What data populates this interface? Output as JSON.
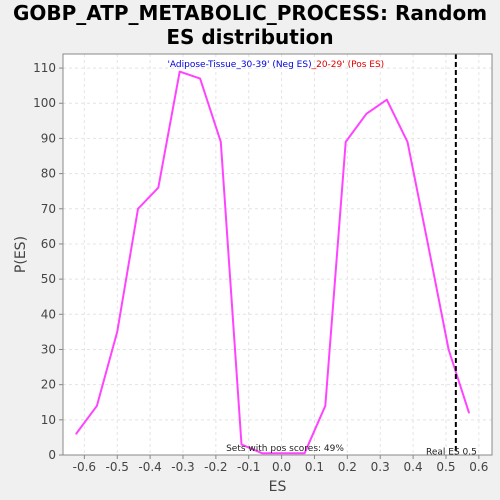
{
  "chart_data": {
    "type": "line",
    "title_line1": "GOBP_ATP_METABOLIC_PROCESS: Random",
    "title_line2": "ES distribution",
    "xlabel": "ES",
    "ylabel": "P(ES)",
    "xlim": [
      -0.665,
      0.64
    ],
    "ylim": [
      0,
      114
    ],
    "xticks": [
      "-0.6",
      "-0.5",
      "-0.4",
      "-0.3",
      "-0.2",
      "-0.1",
      "0.0",
      "0.1",
      "0.2",
      "0.3",
      "0.4",
      "0.5",
      "0.6"
    ],
    "yticks": [
      "0",
      "10",
      "20",
      "30",
      "40",
      "50",
      "60",
      "70",
      "80",
      "90",
      "100",
      "110"
    ],
    "grid": true,
    "series": [
      {
        "color": "#ff44ff",
        "x": [
          -0.625,
          -0.562,
          -0.5,
          -0.437,
          -0.375,
          -0.31,
          -0.248,
          -0.185,
          -0.122,
          -0.06,
          0.0,
          0.07,
          0.133,
          0.195,
          0.258,
          0.32,
          0.383,
          0.445,
          0.508,
          0.57
        ],
        "y": [
          6,
          14,
          35,
          70,
          76,
          109,
          107,
          89,
          3,
          0.5,
          0.5,
          0.5,
          14,
          89,
          97,
          101,
          89,
          60,
          30,
          12
        ]
      }
    ],
    "neg_label": "'Adipose-Tissue_30-39' (Neg ES)",
    "pos_label": "_20-29' (Pos ES)",
    "neg_label_color": "#0000dd",
    "pos_label_color": "#dd0000",
    "real_es": 0.53,
    "real_es_label": "Real ES 0.5",
    "pos_scores_label": "Sets with pos scores: 49%"
  }
}
